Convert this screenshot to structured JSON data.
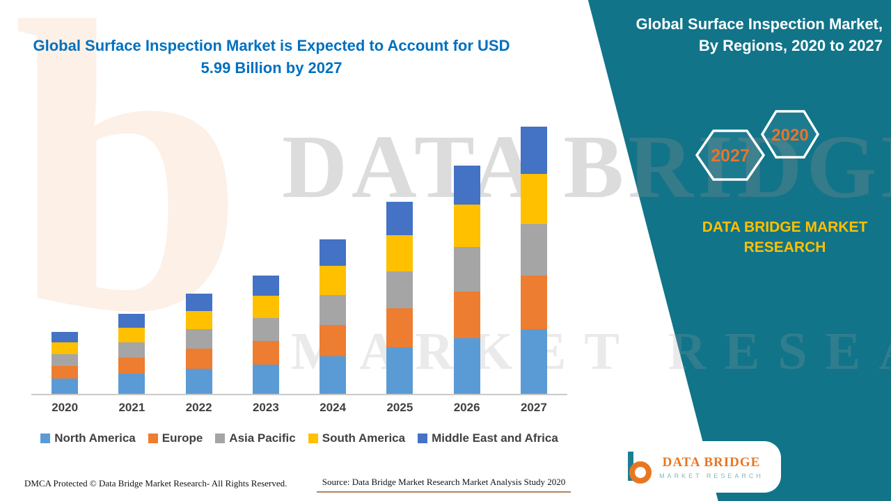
{
  "main": {
    "title": "Global Surface Inspection Market is Expected to Account for USD 5.99 Billion by 2027",
    "title_color": "#0070C0"
  },
  "panel": {
    "title_line1": "Global Surface Inspection Market,",
    "title_line2": "By Regions, 2020 to 2027",
    "hexagons": [
      {
        "label": "2027"
      },
      {
        "label": "2020"
      }
    ],
    "brand_line1": "DATA BRIDGE MARKET",
    "brand_line2": "RESEARCH",
    "bg_color": "#117489",
    "brand_color": "#FFC000",
    "hex_label_color": "#E8752C"
  },
  "watermark": {
    "logo_letter": "b",
    "line1": "DATA BRIDGE",
    "line2": "MARKET RESEARCH"
  },
  "chart_data": {
    "type": "bar",
    "stacked": true,
    "title": "Global Surface Inspection Market, By Regions, 2020 to 2027",
    "xlabel": "",
    "ylabel": "",
    "ylim": [
      0,
      6.5
    ],
    "grid": false,
    "legend_position": "bottom",
    "categories": [
      "2020",
      "2021",
      "2022",
      "2023",
      "2024",
      "2025",
      "2026",
      "2027"
    ],
    "series": [
      {
        "name": "North America",
        "color": "#5B9BD5",
        "values": [
          0.35,
          0.45,
          0.56,
          0.66,
          0.85,
          1.05,
          1.25,
          1.45
        ]
      },
      {
        "name": "Europe",
        "color": "#ED7D31",
        "values": [
          0.28,
          0.36,
          0.45,
          0.53,
          0.7,
          0.87,
          1.04,
          1.2
        ]
      },
      {
        "name": "Asia Pacific",
        "color": "#A5A5A5",
        "values": [
          0.27,
          0.35,
          0.43,
          0.51,
          0.67,
          0.83,
          1.0,
          1.16
        ]
      },
      {
        "name": "South America",
        "color": "#FFC000",
        "values": [
          0.26,
          0.33,
          0.41,
          0.5,
          0.65,
          0.81,
          0.96,
          1.12
        ]
      },
      {
        "name": "Middle East and Africa",
        "color": "#4472C4",
        "values": [
          0.24,
          0.31,
          0.39,
          0.46,
          0.6,
          0.75,
          0.88,
          1.06
        ]
      }
    ],
    "approx_totals_usd_billion": [
      1.4,
      1.8,
      2.24,
      2.66,
      3.47,
      4.31,
      5.13,
      5.99
    ]
  },
  "logo": {
    "name": "DATA BRIDGE",
    "tagline": "MARKET RESEARCH"
  },
  "footer": {
    "dmca": "DMCA Protected © Data Bridge Market Research- All Rights Reserved.",
    "source": "Source: Data Bridge Market Research Market Analysis Study 2020"
  }
}
